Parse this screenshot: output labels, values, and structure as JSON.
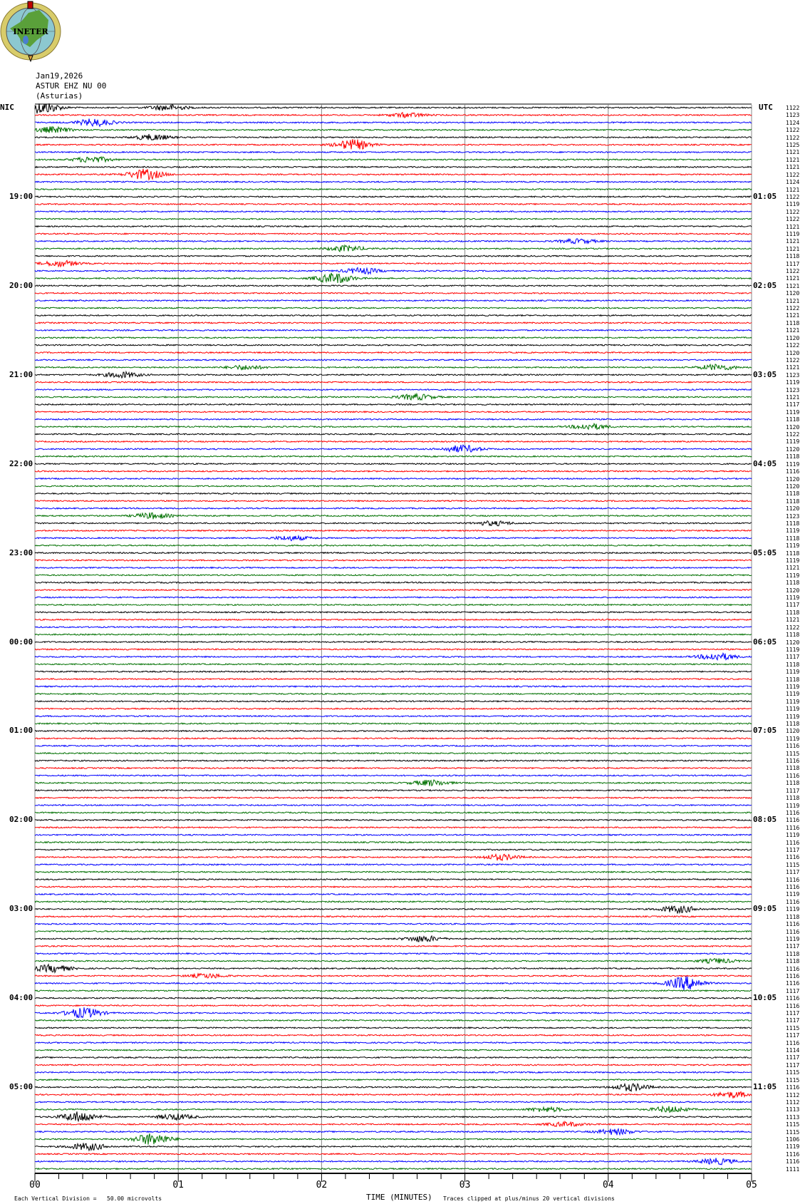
{
  "logo": {
    "text": "INETER",
    "colors": {
      "ring": "#d8cc6a",
      "globe": "#8cc8d0",
      "land": "#5aa03a",
      "lake": "#4a7fd0",
      "flag": "#c00000"
    }
  },
  "header": {
    "date": "Jan19,2026",
    "station": "ASTUR EHZ NU 00",
    "location": "(Asturias)"
  },
  "left_zone": "NIC",
  "right_zone": "UTC",
  "chart_data": {
    "type": "line",
    "title": "ASTUR EHZ NU 00 (Asturias) Jan19,2026",
    "xlabel": "TIME (MINUTES)",
    "xlim": [
      0,
      5
    ],
    "x_ticks": [
      "00",
      "01",
      "02",
      "03",
      "04",
      "05"
    ],
    "minor_ticks_per_minute": 6,
    "rows": 144,
    "minutes_per_row": 5,
    "trace_colors": [
      "#000000",
      "#ff0000",
      "#0000ff",
      "#007000"
    ],
    "left_hour_labels": [
      {
        "row": 12,
        "label": "19:00"
      },
      {
        "row": 24,
        "label": "20:00"
      },
      {
        "row": 36,
        "label": "21:00"
      },
      {
        "row": 48,
        "label": "22:00"
      },
      {
        "row": 60,
        "label": "23:00"
      },
      {
        "row": 72,
        "label": "00:00"
      },
      {
        "row": 84,
        "label": "01:00"
      },
      {
        "row": 96,
        "label": "02:00"
      },
      {
        "row": 108,
        "label": "03:00"
      },
      {
        "row": 120,
        "label": "04:00"
      },
      {
        "row": 132,
        "label": "05:00"
      }
    ],
    "right_hour_labels": [
      {
        "row": 12,
        "label": "01:05"
      },
      {
        "row": 24,
        "label": "02:05"
      },
      {
        "row": 36,
        "label": "03:05"
      },
      {
        "row": 48,
        "label": "04:05"
      },
      {
        "row": 60,
        "label": "05:05"
      },
      {
        "row": 72,
        "label": "06:05"
      },
      {
        "row": 84,
        "label": "07:05"
      },
      {
        "row": 96,
        "label": "08:05"
      },
      {
        "row": 108,
        "label": "09:05"
      },
      {
        "row": 120,
        "label": "10:05"
      },
      {
        "row": 132,
        "label": "11:05"
      }
    ],
    "row_values": [
      "1122",
      "1123",
      "1124",
      "1122",
      "1122",
      "1125",
      "1121",
      "1121",
      "1121",
      "1122",
      "1124",
      "1121",
      "1122",
      "1119",
      "1122",
      "1122",
      "1121",
      "1119",
      "1121",
      "1121",
      "1118",
      "1117",
      "1122",
      "1121",
      "1121",
      "1120",
      "1121",
      "1122",
      "1121",
      "1118",
      "1121",
      "1120",
      "1122",
      "1120",
      "1122",
      "1121",
      "1123",
      "1119",
      "1123",
      "1121",
      "1117",
      "1119",
      "1118",
      "1120",
      "1122",
      "1119",
      "1120",
      "1118",
      "1119",
      "1116",
      "1120",
      "1120",
      "1118",
      "1118",
      "1120",
      "1123",
      "1118",
      "1119",
      "1118",
      "1119",
      "1118",
      "1119",
      "1121",
      "1119",
      "1118",
      "1120",
      "1119",
      "1117",
      "1118",
      "1121",
      "1122",
      "1118",
      "1120",
      "1119",
      "1117",
      "1118",
      "1119",
      "1118",
      "1119",
      "1119",
      "1119",
      "1119",
      "1119",
      "1118",
      "1120",
      "1119",
      "1116",
      "1115",
      "1116",
      "1118",
      "1116",
      "1118",
      "1117",
      "1118",
      "1119",
      "1116",
      "1116",
      "1116",
      "1119",
      "1116",
      "1117",
      "1116",
      "1115",
      "1117",
      "1116",
      "1116",
      "1119",
      "1116",
      "1119",
      "1118",
      "1116",
      "1116",
      "1119",
      "1117",
      "1118",
      "1118",
      "1116",
      "1116",
      "1116",
      "1117",
      "1116",
      "1116",
      "1117",
      "1117",
      "1115",
      "1117",
      "1116",
      "1114",
      "1117",
      "1117",
      "1115",
      "1115",
      "1116",
      "1112",
      "1112",
      "1113",
      "1113",
      "1115",
      "1115",
      "1106",
      "1119",
      "1116",
      "1116",
      "1111"
    ],
    "events": [
      {
        "row": 0,
        "minute": 0.05,
        "amp": 8
      },
      {
        "row": 0,
        "minute": 0.93,
        "amp": 4
      },
      {
        "row": 1,
        "minute": 2.6,
        "amp": 3
      },
      {
        "row": 2,
        "minute": 0.42,
        "amp": 5
      },
      {
        "row": 3,
        "minute": 0.12,
        "amp": 4
      },
      {
        "row": 4,
        "minute": 0.82,
        "amp": 4
      },
      {
        "row": 5,
        "minute": 2.22,
        "amp": 7
      },
      {
        "row": 7,
        "minute": 0.4,
        "amp": 4
      },
      {
        "row": 9,
        "minute": 0.77,
        "amp": 7
      },
      {
        "row": 18,
        "minute": 3.79,
        "amp": 3
      },
      {
        "row": 19,
        "minute": 2.17,
        "amp": 4
      },
      {
        "row": 21,
        "minute": 0.18,
        "amp": 4
      },
      {
        "row": 22,
        "minute": 2.28,
        "amp": 4
      },
      {
        "row": 23,
        "minute": 2.09,
        "amp": 7
      },
      {
        "row": 35,
        "minute": 4.76,
        "amp": 4
      },
      {
        "row": 35,
        "minute": 1.47,
        "amp": 3
      },
      {
        "row": 36,
        "minute": 0.61,
        "amp": 4
      },
      {
        "row": 39,
        "minute": 2.66,
        "amp": 4
      },
      {
        "row": 43,
        "minute": 3.87,
        "amp": 4
      },
      {
        "row": 46,
        "minute": 2.98,
        "amp": 5
      },
      {
        "row": 55,
        "minute": 0.82,
        "amp": 4
      },
      {
        "row": 56,
        "minute": 3.2,
        "amp": 3
      },
      {
        "row": 58,
        "minute": 1.79,
        "amp": 3
      },
      {
        "row": 74,
        "minute": 4.76,
        "amp": 5
      },
      {
        "row": 91,
        "minute": 2.76,
        "amp": 4
      },
      {
        "row": 101,
        "minute": 3.25,
        "amp": 4
      },
      {
        "row": 108,
        "minute": 4.49,
        "amp": 5
      },
      {
        "row": 112,
        "minute": 2.71,
        "amp": 4
      },
      {
        "row": 115,
        "minute": 4.76,
        "amp": 3
      },
      {
        "row": 116,
        "minute": 0.12,
        "amp": 5
      },
      {
        "row": 117,
        "minute": 1.2,
        "amp": 3
      },
      {
        "row": 118,
        "minute": 4.54,
        "amp": 9
      },
      {
        "row": 122,
        "minute": 0.34,
        "amp": 7
      },
      {
        "row": 132,
        "minute": 4.16,
        "amp": 5
      },
      {
        "row": 133,
        "minute": 4.87,
        "amp": 4
      },
      {
        "row": 135,
        "minute": 4.43,
        "amp": 4
      },
      {
        "row": 135,
        "minute": 3.57,
        "amp": 3
      },
      {
        "row": 136,
        "minute": 0.31,
        "amp": 7
      },
      {
        "row": 136,
        "minute": 0.98,
        "amp": 4
      },
      {
        "row": 137,
        "minute": 3.7,
        "amp": 3
      },
      {
        "row": 138,
        "minute": 4.05,
        "amp": 4
      },
      {
        "row": 139,
        "minute": 0.82,
        "amp": 8
      },
      {
        "row": 140,
        "minute": 0.37,
        "amp": 5
      },
      {
        "row": 142,
        "minute": 4.76,
        "amp": 4
      }
    ]
  },
  "footer": {
    "scale": "Each Vertical Division =   50.00 microvolts",
    "xlabel": "TIME (MINUTES)",
    "clip_note": "Traces clipped at plus/minus 20 vertical divisions"
  }
}
